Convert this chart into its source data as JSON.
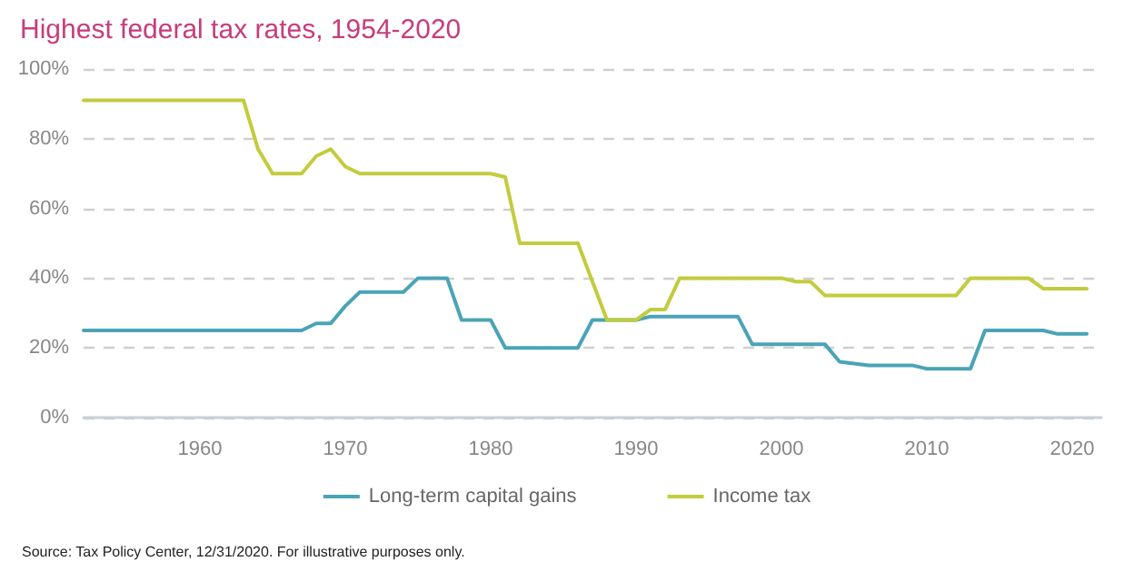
{
  "chart_data": {
    "type": "line",
    "title": "Highest federal tax rates, 1954-2020",
    "xlim": [
      1952,
      2022
    ],
    "xticks": [
      1960,
      1970,
      1980,
      1990,
      2000,
      2010,
      2020
    ],
    "ylim": [
      0,
      100
    ],
    "yticks": [
      {
        "value": 0,
        "label": "0%"
      },
      {
        "value": 20,
        "label": "20%"
      },
      {
        "value": 40,
        "label": "40%"
      },
      {
        "value": 60,
        "label": "60%"
      },
      {
        "value": 80,
        "label": "80%"
      },
      {
        "value": 100,
        "label": "100%"
      }
    ],
    "grid": "y",
    "legend": "bottom",
    "marker": "none",
    "line_style": "solid",
    "annotations": [
      "Source: Tax Policy Center, 12/31/2020. For illustrative purposes only."
    ],
    "series": [
      {
        "name": "Long-term capital gains",
        "color": "#4ba3b6",
        "x": [
          1952,
          1967,
          1968,
          1969,
          1970,
          1971,
          1974,
          1975,
          1977,
          1978,
          1980,
          1981,
          1986,
          1987,
          1990,
          1991,
          1997,
          1998,
          2003,
          2004,
          2006,
          2009,
          2010,
          2013,
          2014,
          2018,
          2019,
          2021
        ],
        "values": [
          25,
          25,
          27,
          27,
          32,
          36,
          36,
          40,
          40,
          28,
          28,
          20,
          20,
          28,
          28,
          29,
          29,
          21,
          21,
          16,
          15,
          15,
          14,
          14,
          25,
          25,
          24,
          24
        ]
      },
      {
        "name": "Income tax",
        "color": "#c2cc3c",
        "x": [
          1952,
          1963,
          1964,
          1965,
          1967,
          1968,
          1969,
          1970,
          1971,
          1980,
          1981,
          1982,
          1986,
          1988,
          1990,
          1991,
          1992,
          1993,
          2000,
          2001,
          2002,
          2003,
          2012,
          2013,
          2017,
          2018,
          2021
        ],
        "values": [
          91,
          91,
          77,
          70,
          70,
          75,
          77,
          72,
          70,
          70,
          69,
          50,
          50,
          28,
          28,
          31,
          31,
          40,
          40,
          39,
          39,
          35,
          35,
          40,
          40,
          37,
          37
        ]
      }
    ]
  }
}
